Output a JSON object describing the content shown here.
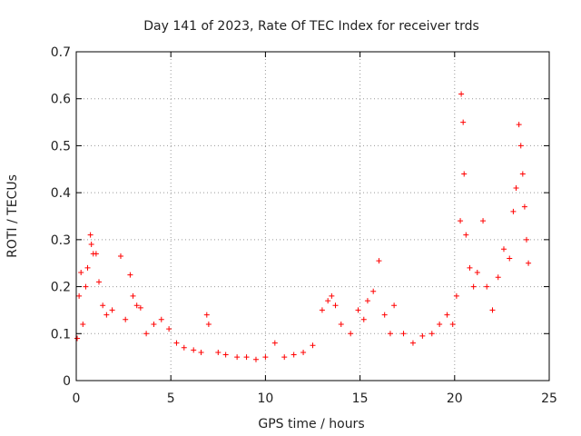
{
  "chart_data": {
    "type": "scatter",
    "title": "Day 141 of 2023, Rate Of TEC Index for receiver trds",
    "xlabel": "GPS time / hours",
    "ylabel": "ROTI / TECUs",
    "xlim": [
      0,
      25
    ],
    "ylim": [
      0,
      0.7
    ],
    "xticks": [
      0,
      5,
      10,
      15,
      20,
      25
    ],
    "yticks": [
      0,
      0.1,
      0.2,
      0.3,
      0.4,
      0.5,
      0.6,
      0.7
    ],
    "grid": true,
    "marker": "+",
    "color": "#ff0000",
    "series": [
      {
        "name": "",
        "points": [
          [
            0.05,
            0.09
          ],
          [
            0.15,
            0.18
          ],
          [
            0.25,
            0.23
          ],
          [
            0.35,
            0.12
          ],
          [
            0.5,
            0.2
          ],
          [
            0.6,
            0.24
          ],
          [
            0.75,
            0.31
          ],
          [
            0.8,
            0.29
          ],
          [
            0.9,
            0.27
          ],
          [
            1.05,
            0.27
          ],
          [
            1.2,
            0.21
          ],
          [
            1.4,
            0.16
          ],
          [
            1.6,
            0.14
          ],
          [
            1.9,
            0.15
          ],
          [
            2.35,
            0.265
          ],
          [
            2.6,
            0.13
          ],
          [
            2.85,
            0.225
          ],
          [
            3.0,
            0.18
          ],
          [
            3.2,
            0.16
          ],
          [
            3.4,
            0.155
          ],
          [
            3.7,
            0.1
          ],
          [
            4.1,
            0.12
          ],
          [
            4.5,
            0.13
          ],
          [
            4.9,
            0.11
          ],
          [
            5.3,
            0.08
          ],
          [
            5.7,
            0.07
          ],
          [
            6.2,
            0.065
          ],
          [
            6.6,
            0.06
          ],
          [
            6.9,
            0.14
          ],
          [
            7.0,
            0.12
          ],
          [
            7.5,
            0.06
          ],
          [
            7.9,
            0.055
          ],
          [
            8.5,
            0.05
          ],
          [
            9.0,
            0.05
          ],
          [
            9.5,
            0.045
          ],
          [
            10.0,
            0.05
          ],
          [
            10.5,
            0.08
          ],
          [
            11.0,
            0.05
          ],
          [
            11.5,
            0.055
          ],
          [
            12.0,
            0.06
          ],
          [
            12.5,
            0.075
          ],
          [
            13.0,
            0.15
          ],
          [
            13.3,
            0.17
          ],
          [
            13.5,
            0.18
          ],
          [
            13.7,
            0.16
          ],
          [
            14.0,
            0.12
          ],
          [
            14.5,
            0.1
          ],
          [
            14.9,
            0.15
          ],
          [
            15.2,
            0.13
          ],
          [
            15.4,
            0.17
          ],
          [
            15.7,
            0.19
          ],
          [
            16.0,
            0.255
          ],
          [
            16.3,
            0.14
          ],
          [
            16.6,
            0.1
          ],
          [
            16.8,
            0.16
          ],
          [
            17.3,
            0.1
          ],
          [
            17.8,
            0.08
          ],
          [
            18.3,
            0.095
          ],
          [
            18.8,
            0.1
          ],
          [
            19.2,
            0.12
          ],
          [
            19.6,
            0.14
          ],
          [
            19.9,
            0.12
          ],
          [
            20.1,
            0.18
          ],
          [
            20.3,
            0.34
          ],
          [
            20.35,
            0.61
          ],
          [
            20.45,
            0.55
          ],
          [
            20.5,
            0.44
          ],
          [
            20.6,
            0.31
          ],
          [
            20.8,
            0.24
          ],
          [
            21.0,
            0.2
          ],
          [
            21.2,
            0.23
          ],
          [
            21.5,
            0.34
          ],
          [
            21.7,
            0.2
          ],
          [
            22.0,
            0.15
          ],
          [
            22.3,
            0.22
          ],
          [
            22.6,
            0.28
          ],
          [
            22.9,
            0.26
          ],
          [
            23.1,
            0.36
          ],
          [
            23.25,
            0.41
          ],
          [
            23.4,
            0.545
          ],
          [
            23.5,
            0.5
          ],
          [
            23.6,
            0.44
          ],
          [
            23.7,
            0.37
          ],
          [
            23.8,
            0.3
          ],
          [
            23.9,
            0.25
          ]
        ]
      }
    ]
  }
}
